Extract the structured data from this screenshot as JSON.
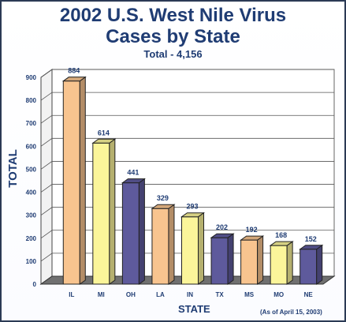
{
  "chart_data": {
    "type": "bar",
    "title_line1": "2002 U.S. West Nile Virus",
    "title_line2": "Cases by State",
    "subtitle": "Total - 4,156",
    "xlabel": "STATE",
    "ylabel": "TOTAL",
    "note": "(As of April 15, 2003)",
    "categories": [
      "IL",
      "MI",
      "OH",
      "LA",
      "IN",
      "TX",
      "MS",
      "MO",
      "NE"
    ],
    "values": [
      884,
      614,
      441,
      329,
      293,
      202,
      192,
      168,
      152
    ],
    "value_labels": [
      "884",
      "614",
      "441",
      "329",
      "293",
      "202",
      "192",
      "168",
      "152"
    ],
    "ylim": [
      0,
      900
    ],
    "yticks": [
      0,
      100,
      200,
      300,
      400,
      500,
      600,
      700,
      800,
      900
    ],
    "bar_colors": [
      "#f8c48f",
      "#fbf59a",
      "#5e5a9c",
      "#f8c48f",
      "#fbf59a",
      "#5e5a9c",
      "#f8c48f",
      "#fbf59a",
      "#5e5a9c"
    ],
    "grid": true
  }
}
